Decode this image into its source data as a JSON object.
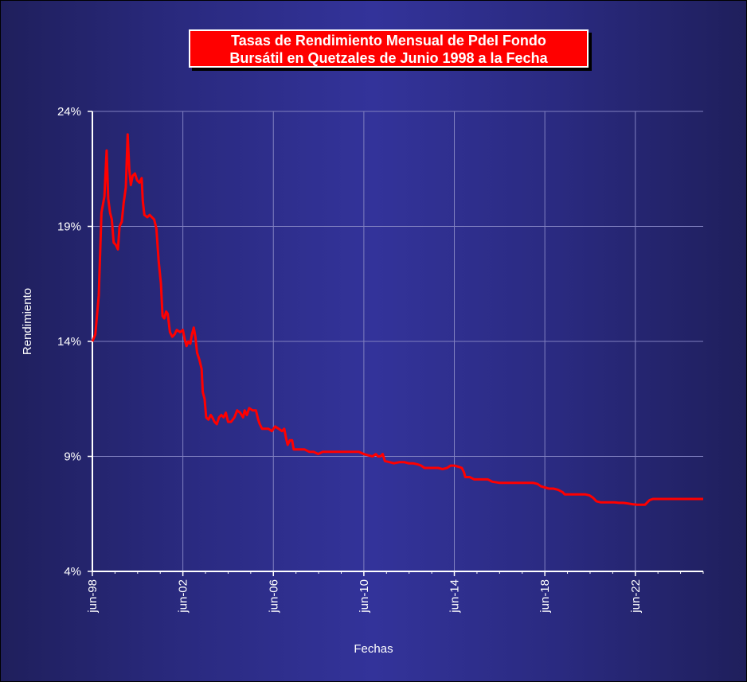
{
  "chart_data": {
    "type": "line",
    "title_line1": "Tasas de Rendimiento Mensual de PdeI Fondo",
    "title_line2": "Bursátil en Quetzales de Junio 1998 a la Fecha",
    "xlabel": "Fechas",
    "ylabel": "Rendimiento",
    "ylim": [
      4,
      24
    ],
    "yticks": [
      {
        "value": 4,
        "label": "4%"
      },
      {
        "value": 9,
        "label": "9%"
      },
      {
        "value": 14,
        "label": "14%"
      },
      {
        "value": 19,
        "label": "19%"
      },
      {
        "value": 24,
        "label": "24%"
      }
    ],
    "xlim": [
      1998.42,
      2025.42
    ],
    "xticks": [
      {
        "value": 1998.42,
        "label": "jun-98"
      },
      {
        "value": 2002.42,
        "label": "jun-02"
      },
      {
        "value": 2006.42,
        "label": "jun-06"
      },
      {
        "value": 2010.42,
        "label": "jun-10"
      },
      {
        "value": 2014.42,
        "label": "jun-14"
      },
      {
        "value": 2018.42,
        "label": "jun-18"
      },
      {
        "value": 2022.42,
        "label": "jun-22"
      }
    ],
    "grid": true,
    "colors": {
      "line": "#ff0000",
      "grid": "#8080c0",
      "axis": "#ffffff"
    },
    "series": [
      {
        "values": [
          [
            1998.42,
            14.0
          ],
          [
            1998.55,
            14.3
          ],
          [
            1998.7,
            16.0
          ],
          [
            1998.82,
            19.6
          ],
          [
            1998.95,
            20.3
          ],
          [
            1999.05,
            22.3
          ],
          [
            1999.12,
            20.2
          ],
          [
            1999.2,
            19.6
          ],
          [
            1999.28,
            19.3
          ],
          [
            1999.36,
            18.3
          ],
          [
            1999.45,
            18.2
          ],
          [
            1999.55,
            18.0
          ],
          [
            1999.62,
            19.0
          ],
          [
            1999.72,
            19.2
          ],
          [
            1999.8,
            20.0
          ],
          [
            1999.9,
            20.7
          ],
          [
            1999.98,
            23.0
          ],
          [
            2000.05,
            21.5
          ],
          [
            2000.12,
            20.8
          ],
          [
            2000.2,
            21.2
          ],
          [
            2000.3,
            21.3
          ],
          [
            2000.4,
            21.0
          ],
          [
            2000.5,
            20.9
          ],
          [
            2000.6,
            21.1
          ],
          [
            2000.65,
            20.1
          ],
          [
            2000.72,
            19.5
          ],
          [
            2000.85,
            19.4
          ],
          [
            2000.95,
            19.5
          ],
          [
            2001.05,
            19.4
          ],
          [
            2001.15,
            19.3
          ],
          [
            2001.25,
            18.9
          ],
          [
            2001.35,
            17.5
          ],
          [
            2001.45,
            16.5
          ],
          [
            2001.52,
            15.1
          ],
          [
            2001.6,
            15.0
          ],
          [
            2001.68,
            15.3
          ],
          [
            2001.75,
            15.2
          ],
          [
            2001.85,
            14.4
          ],
          [
            2001.95,
            14.2
          ],
          [
            2002.05,
            14.3
          ],
          [
            2002.15,
            14.5
          ],
          [
            2002.3,
            14.4
          ],
          [
            2002.42,
            14.5
          ],
          [
            2002.5,
            14.1
          ],
          [
            2002.58,
            13.8
          ],
          [
            2002.66,
            14.0
          ],
          [
            2002.75,
            13.9
          ],
          [
            2002.82,
            14.3
          ],
          [
            2002.9,
            14.6
          ],
          [
            2002.97,
            14.2
          ],
          [
            2003.05,
            13.5
          ],
          [
            2003.15,
            13.2
          ],
          [
            2003.25,
            12.8
          ],
          [
            2003.3,
            11.8
          ],
          [
            2003.38,
            11.5
          ],
          [
            2003.45,
            10.7
          ],
          [
            2003.55,
            10.6
          ],
          [
            2003.65,
            10.8
          ],
          [
            2003.72,
            10.7
          ],
          [
            2003.82,
            10.5
          ],
          [
            2003.92,
            10.4
          ],
          [
            2004.02,
            10.7
          ],
          [
            2004.12,
            10.8
          ],
          [
            2004.22,
            10.7
          ],
          [
            2004.32,
            10.9
          ],
          [
            2004.42,
            10.5
          ],
          [
            2004.55,
            10.5
          ],
          [
            2004.7,
            10.7
          ],
          [
            2004.82,
            11.0
          ],
          [
            2004.95,
            10.9
          ],
          [
            2005.08,
            10.7
          ],
          [
            2005.15,
            11.0
          ],
          [
            2005.25,
            10.8
          ],
          [
            2005.35,
            11.1
          ],
          [
            2005.5,
            11.0
          ],
          [
            2005.65,
            11.0
          ],
          [
            2005.75,
            10.6
          ],
          [
            2005.82,
            10.4
          ],
          [
            2005.92,
            10.2
          ],
          [
            2006.05,
            10.2
          ],
          [
            2006.2,
            10.2
          ],
          [
            2006.35,
            10.1
          ],
          [
            2006.5,
            10.3
          ],
          [
            2006.65,
            10.2
          ],
          [
            2006.8,
            10.1
          ],
          [
            2006.9,
            10.2
          ],
          [
            2006.98,
            9.8
          ],
          [
            2007.05,
            9.5
          ],
          [
            2007.15,
            9.7
          ],
          [
            2007.25,
            9.7
          ],
          [
            2007.32,
            9.3
          ],
          [
            2007.45,
            9.3
          ],
          [
            2007.6,
            9.3
          ],
          [
            2007.8,
            9.3
          ],
          [
            2008.0,
            9.2
          ],
          [
            2008.2,
            9.2
          ],
          [
            2008.4,
            9.1
          ],
          [
            2008.6,
            9.2
          ],
          [
            2008.8,
            9.2
          ],
          [
            2009.0,
            9.2
          ],
          [
            2009.2,
            9.2
          ],
          [
            2009.4,
            9.2
          ],
          [
            2009.6,
            9.2
          ],
          [
            2009.8,
            9.2
          ],
          [
            2010.0,
            9.2
          ],
          [
            2010.2,
            9.2
          ],
          [
            2010.42,
            9.1
          ],
          [
            2010.6,
            9.05
          ],
          [
            2010.8,
            9.0
          ],
          [
            2010.95,
            9.1
          ],
          [
            2011.05,
            9.0
          ],
          [
            2011.15,
            9.0
          ],
          [
            2011.25,
            9.1
          ],
          [
            2011.35,
            8.8
          ],
          [
            2011.55,
            8.75
          ],
          [
            2011.75,
            8.7
          ],
          [
            2012.0,
            8.75
          ],
          [
            2012.2,
            8.75
          ],
          [
            2012.4,
            8.7
          ],
          [
            2012.6,
            8.7
          ],
          [
            2012.8,
            8.65
          ],
          [
            2012.95,
            8.6
          ],
          [
            2013.1,
            8.5
          ],
          [
            2013.3,
            8.5
          ],
          [
            2013.5,
            8.5
          ],
          [
            2013.7,
            8.5
          ],
          [
            2013.9,
            8.45
          ],
          [
            2014.1,
            8.5
          ],
          [
            2014.25,
            8.6
          ],
          [
            2014.42,
            8.6
          ],
          [
            2014.6,
            8.55
          ],
          [
            2014.75,
            8.5
          ],
          [
            2014.85,
            8.3
          ],
          [
            2014.9,
            8.1
          ],
          [
            2015.1,
            8.1
          ],
          [
            2015.3,
            8.0
          ],
          [
            2015.6,
            8.0
          ],
          [
            2015.9,
            8.0
          ],
          [
            2016.1,
            7.9
          ],
          [
            2016.4,
            7.85
          ],
          [
            2016.7,
            7.85
          ],
          [
            2017.0,
            7.85
          ],
          [
            2017.3,
            7.85
          ],
          [
            2017.6,
            7.85
          ],
          [
            2017.9,
            7.85
          ],
          [
            2018.1,
            7.8
          ],
          [
            2018.25,
            7.7
          ],
          [
            2018.42,
            7.65
          ],
          [
            2018.6,
            7.6
          ],
          [
            2018.8,
            7.6
          ],
          [
            2019.0,
            7.55
          ],
          [
            2019.2,
            7.45
          ],
          [
            2019.3,
            7.35
          ],
          [
            2019.6,
            7.35
          ],
          [
            2019.9,
            7.35
          ],
          [
            2020.2,
            7.35
          ],
          [
            2020.4,
            7.3
          ],
          [
            2020.55,
            7.2
          ],
          [
            2020.7,
            7.05
          ],
          [
            2020.9,
            7.0
          ],
          [
            2021.1,
            7.0
          ],
          [
            2021.3,
            7.0
          ],
          [
            2021.5,
            7.0
          ],
          [
            2021.7,
            6.98
          ],
          [
            2021.9,
            6.98
          ],
          [
            2022.1,
            6.95
          ],
          [
            2022.3,
            6.92
          ],
          [
            2022.5,
            6.9
          ],
          [
            2022.7,
            6.9
          ],
          [
            2022.85,
            6.9
          ],
          [
            2022.95,
            7.0
          ],
          [
            2023.05,
            7.1
          ],
          [
            2023.2,
            7.15
          ],
          [
            2023.4,
            7.15
          ],
          [
            2023.8,
            7.15
          ],
          [
            2024.2,
            7.15
          ],
          [
            2024.6,
            7.15
          ],
          [
            2025.0,
            7.15
          ],
          [
            2025.42,
            7.15
          ]
        ]
      }
    ]
  }
}
